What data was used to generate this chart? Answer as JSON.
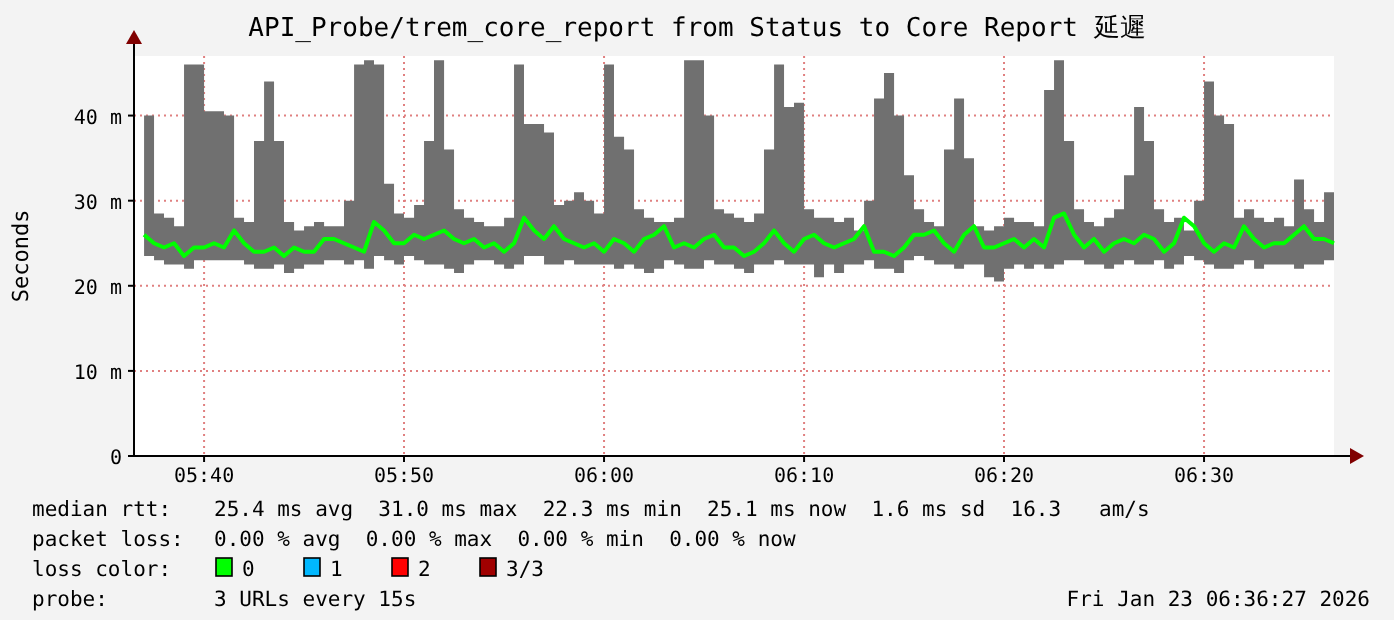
{
  "chart_data": {
    "type": "line",
    "title": "API_Probe/trem_core_report from Status to Core Report 延遲",
    "ylabel": "Seconds",
    "x": [
      5.6167,
      5.625,
      5.6333,
      5.6417,
      5.65,
      5.6583,
      5.6667,
      5.675,
      5.6833,
      5.6917,
      5.7,
      5.7083,
      5.7167,
      5.725,
      5.7333,
      5.7417,
      5.75,
      5.7583,
      5.7667,
      5.775,
      5.7833,
      5.7917,
      5.8,
      5.8083,
      5.8167,
      5.825,
      5.8333,
      5.8417,
      5.85,
      5.8583,
      5.8667,
      5.875,
      5.8833,
      5.8917,
      5.9,
      5.9083,
      5.9167,
      5.925,
      5.9333,
      5.9417,
      5.95,
      5.9583,
      5.9667,
      5.975,
      5.9833,
      5.9917,
      6.0,
      6.0083,
      6.0167,
      6.025,
      6.0333,
      6.0417,
      6.05,
      6.0583,
      6.0667,
      6.075,
      6.0833,
      6.0917,
      6.1,
      6.1083,
      6.1167,
      6.125,
      6.1333,
      6.1417,
      6.15,
      6.1583,
      6.1667,
      6.175,
      6.1833,
      6.1917,
      6.2,
      6.2083,
      6.2167,
      6.225,
      6.2333,
      6.2417,
      6.25,
      6.2583,
      6.2667,
      6.275,
      6.2833,
      6.2917,
      6.3,
      6.3083,
      6.3167,
      6.325,
      6.3333,
      6.3417,
      6.35,
      6.3583,
      6.3667,
      6.375,
      6.3833,
      6.3917,
      6.4,
      6.4083,
      6.4167,
      6.425,
      6.4333,
      6.4417,
      6.45,
      6.4583,
      6.4667,
      6.475,
      6.4833,
      6.4917,
      6.5,
      6.5083,
      6.5167,
      6.525,
      6.5333,
      6.5417,
      6.55,
      6.5583,
      6.5667,
      6.575,
      6.5833,
      6.5917,
      6.6,
      6.6083
    ],
    "series": [
      {
        "color": "#00ff00",
        "values": [
          26,
          25,
          24.5,
          25,
          23.5,
          24.5,
          24.5,
          25,
          24.5,
          26.5,
          25,
          24,
          24,
          24.5,
          23.5,
          24.5,
          24,
          24,
          25.5,
          25.5,
          25,
          24.5,
          24,
          27.5,
          26.5,
          25,
          25,
          26,
          25.5,
          26,
          26.5,
          25.5,
          25,
          25.5,
          24.5,
          25,
          24,
          25,
          28,
          26.5,
          25.5,
          27,
          25.5,
          25,
          24.5,
          25,
          24,
          25.5,
          25,
          24,
          25.5,
          26,
          27,
          24.5,
          25,
          24.5,
          25.5,
          26,
          24.5,
          24.5,
          23.5,
          24,
          25,
          26.5,
          25,
          24,
          25.5,
          26,
          25,
          24.5,
          25,
          25.5,
          27,
          24,
          24,
          23.5,
          24.5,
          26,
          26,
          26.5,
          25,
          24,
          26,
          27,
          24.5,
          24.5,
          25,
          25.5,
          24.5,
          25.5,
          24.5,
          28,
          28.5,
          26,
          24.5,
          25.5,
          24,
          25,
          25.5,
          25,
          26,
          25.5,
          24,
          25,
          28,
          27,
          25,
          24,
          25,
          24.5,
          27,
          25.5,
          24.5,
          25,
          25,
          26,
          27,
          25.5,
          25.5,
          25
        ],
        "lower": [
          23.5,
          23,
          22.5,
          22.5,
          22,
          23,
          23,
          23,
          23,
          23,
          22.5,
          22,
          22,
          22.5,
          21.5,
          22,
          22.5,
          22.5,
          23,
          23,
          22.5,
          23,
          22,
          23.5,
          23,
          22.5,
          23.5,
          23,
          22.5,
          22.5,
          22,
          21.5,
          22.5,
          23,
          23,
          22.5,
          22,
          22.5,
          23.5,
          23.5,
          22.5,
          22.5,
          23,
          22.5,
          22.5,
          22.5,
          22.5,
          22,
          22.5,
          22,
          21.5,
          22,
          23,
          22.5,
          22,
          22,
          23,
          22.5,
          22.5,
          22,
          21.5,
          22.5,
          22.5,
          23,
          22.5,
          22.5,
          22.5,
          21,
          22.5,
          21.5,
          22.5,
          22.5,
          23,
          22,
          22,
          21.5,
          23,
          23.5,
          23,
          22.5,
          22.5,
          22,
          22.5,
          22.5,
          21,
          20.5,
          22,
          22.5,
          22,
          22.5,
          22,
          22.5,
          23,
          23,
          22.5,
          22.5,
          22,
          22.5,
          23,
          22.5,
          22.5,
          23,
          22,
          22.5,
          23.5,
          23,
          22.5,
          22,
          22,
          22.5,
          23,
          22,
          22.5,
          22.5,
          22.5,
          22,
          22.5,
          22.5,
          23,
          23
        ],
        "upper": [
          40,
          28.5,
          28,
          27,
          46,
          46,
          40.5,
          40.5,
          40,
          28,
          27.5,
          37,
          44,
          37,
          27.5,
          26.5,
          27,
          27.5,
          27,
          27,
          30,
          46,
          46.5,
          46,
          32,
          28.5,
          28,
          29.5,
          37,
          46.5,
          36,
          29,
          28,
          27.5,
          27,
          27,
          28,
          46,
          39,
          39,
          38,
          29.5,
          30,
          31,
          30,
          28.5,
          46,
          37.5,
          36,
          29,
          28,
          27.5,
          27.5,
          28,
          46.5,
          46.5,
          40,
          29,
          28.5,
          28,
          27.5,
          28.5,
          36,
          46,
          41,
          41.5,
          29,
          28,
          28,
          27.5,
          28,
          26.5,
          30,
          42,
          45,
          40,
          33,
          29,
          27.5,
          27,
          36,
          42,
          35,
          27,
          26.5,
          27,
          28,
          27.5,
          27.5,
          27,
          43,
          46.5,
          37,
          29,
          27.5,
          27,
          28,
          29,
          33,
          41,
          37,
          29,
          27.5,
          28,
          26.5,
          30,
          44,
          40,
          39,
          28,
          29,
          28,
          27.5,
          28,
          27,
          32.5,
          29,
          27.5,
          31,
          28
        ]
      }
    ],
    "xlim": [
      5.6083,
      6.6083
    ],
    "xticks": [
      {
        "value": 5.6667,
        "label": "05:40"
      },
      {
        "value": 5.8333,
        "label": "05:50"
      },
      {
        "value": 6,
        "label": "06:00"
      },
      {
        "value": 6.1667,
        "label": "06:10"
      },
      {
        "value": 6.3333,
        "label": "06:20"
      },
      {
        "value": 6.5,
        "label": "06:30"
      }
    ],
    "ylim": [
      0,
      47
    ],
    "yticks": [
      0,
      {
        "value": 10,
        "label": "10 m"
      },
      {
        "value": 20,
        "label": "20 m"
      },
      {
        "value": 30,
        "label": "30 m"
      },
      {
        "value": 40,
        "label": "40 m"
      }
    ],
    "grid": true,
    "marker": "none",
    "line_style": "solid",
    "annotations": [
      "median rtt:",
      "25.4 ms avg  31.0 ms max  22.3 ms min  25.1 ms now  1.6 ms sd  16.3   am/s",
      "packet loss:",
      "0.00 % avg  0.00 % max  0.00 % min  0.00 % now",
      "loss color:",
      "0",
      "1",
      "2",
      "3/3",
      "probe:",
      "3 URLs every 15s",
      "Fri Jan 23 06:36:27 2026"
    ]
  }
}
